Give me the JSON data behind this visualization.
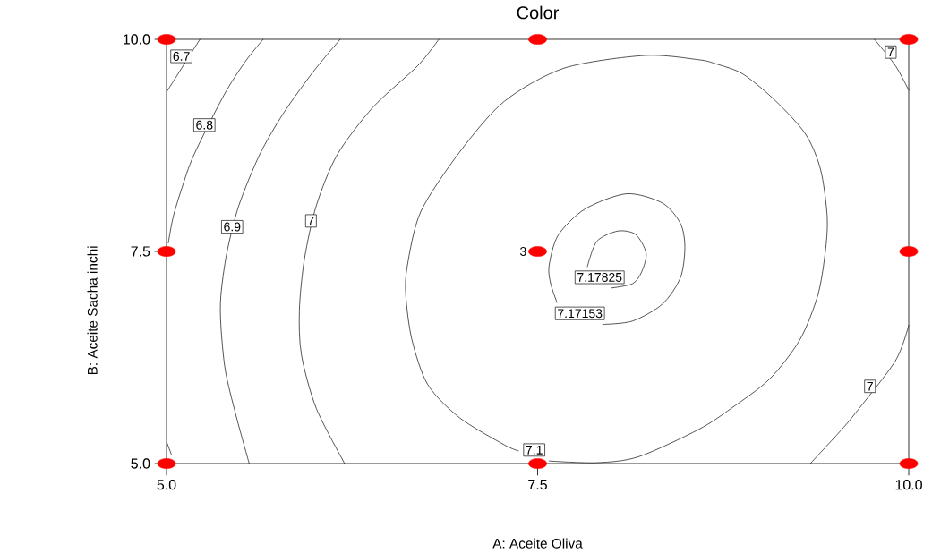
{
  "chart_data": {
    "type": "line",
    "title": "Color",
    "xlabel": "A: Aceite Oliva",
    "ylabel": "B: Aceite Sacha inchi",
    "xlim": [
      5,
      10
    ],
    "ylim": [
      5,
      10
    ],
    "xticks": [
      {
        "value": 5,
        "label": "5.0"
      },
      7.5,
      {
        "value": 10,
        "label": "10.0"
      }
    ],
    "yticks": [
      {
        "value": 5,
        "label": "5.0"
      },
      7.5,
      {
        "value": 10,
        "label": "10.0"
      }
    ],
    "line_style": "solid",
    "series": [
      {
        "color": "#000000",
        "x": [
          5.225,
          5.062,
          5.004
        ],
        "values": [
          10.0,
          9.55,
          9.39
        ]
      },
      {
        "color": "#000000",
        "x": [
          5.004,
          5.034
        ],
        "values": [
          5.24,
          5.1
        ]
      },
      {
        "color": "#000000",
        "x": [
          5.651,
          5.527,
          5.386,
          5.185,
          5.104,
          5.044,
          5.012
        ],
        "values": [
          10.0,
          9.73,
          9.34,
          8.64,
          8.25,
          7.9,
          7.6
        ]
      },
      {
        "color": "#000000",
        "x": [
          6.17,
          5.989,
          5.788,
          5.627,
          5.487,
          5.406,
          5.366,
          5.366,
          5.396,
          5.466,
          5.557
        ],
        "values": [
          10.0,
          9.62,
          9.13,
          8.64,
          8.04,
          7.48,
          6.98,
          6.63,
          6.1,
          5.58,
          5.0
        ]
      },
      {
        "color": "#000000",
        "x": [
          6.834,
          6.693,
          6.391,
          6.15,
          6.009,
          5.929,
          5.895,
          5.909,
          6.009,
          6.2
        ],
        "values": [
          10.0,
          9.69,
          9.2,
          8.64,
          8.04,
          7.41,
          6.81,
          6.28,
          5.65,
          5.0
        ]
      },
      {
        "color": "#000000",
        "x": [
          7.577,
          7.899,
          8.18,
          8.583,
          8.804,
          9.065,
          9.267,
          9.387,
          9.437,
          9.451,
          9.407,
          9.306,
          9.106,
          8.884,
          8.703,
          8.583,
          8.221,
          7.678,
          7.276,
          6.974,
          6.713,
          6.622,
          6.612,
          6.653,
          6.76,
          6.974,
          7.276,
          7.37
        ],
        "values": [
          5.03,
          5.01,
          5.08,
          5.4,
          5.65,
          6.0,
          6.46,
          6.98,
          7.48,
          7.9,
          8.46,
          8.88,
          9.27,
          9.59,
          9.71,
          9.76,
          9.81,
          9.66,
          9.27,
          8.67,
          7.97,
          7.33,
          6.98,
          6.46,
          5.93,
          5.54,
          5.22,
          5.15
        ]
      },
      {
        "name": "7.17153",
        "color": "#000000",
        "x": [
          7.939,
          8.14,
          8.341,
          8.462,
          8.492,
          8.462,
          8.341,
          8.1,
          7.819,
          7.638,
          7.577,
          7.588,
          7.63
        ],
        "values": [
          6.64,
          6.68,
          6.88,
          7.19,
          7.55,
          7.83,
          8.07,
          8.18,
          8.0,
          7.69,
          7.33,
          7.12,
          6.9
        ]
      },
      {
        "name": "7.17825",
        "color": "#000000",
        "x": [
          8.0,
          8.14,
          8.201,
          8.231,
          8.16,
          8.04,
          7.899,
          7.835
        ],
        "values": [
          7.07,
          7.12,
          7.26,
          7.48,
          7.7,
          7.74,
          7.62,
          7.32
        ]
      },
      {
        "color": "#000000",
        "x": [
          9.769,
          9.91,
          10.0
        ],
        "values": [
          10.0,
          9.69,
          9.4
        ]
      },
      {
        "color": "#000000",
        "x": [
          10.0,
          9.91,
          9.648,
          9.548,
          9.337
        ],
        "values": [
          6.63,
          6.21,
          5.61,
          5.4,
          5.0
        ]
      },
      {
        "type": "scatter",
        "color": "#ff0000",
        "marker": "circle",
        "x": [
          5,
          7.5,
          10,
          5,
          7.5,
          10,
          5,
          7.5,
          10
        ],
        "values": [
          10,
          10,
          10,
          7.5,
          7.5,
          7.5,
          5,
          5,
          5
        ]
      }
    ],
    "annotations": [
      {
        "text": "6.7",
        "x": 5.1,
        "y": 9.8
      },
      {
        "text": "6.8",
        "x": 5.255,
        "y": 8.99
      },
      {
        "text": "6.9",
        "x": 5.442,
        "y": 7.79
      },
      {
        "text": "7",
        "x": 5.973,
        "y": 7.86
      },
      {
        "text": "7.1",
        "x": 7.477,
        "y": 5.16
      },
      {
        "text": "7",
        "x": 9.879,
        "y": 9.85
      },
      {
        "text": "7",
        "x": 9.739,
        "y": 5.91
      },
      {
        "text": "3",
        "x": 7.5,
        "y": 7.5
      }
    ]
  }
}
